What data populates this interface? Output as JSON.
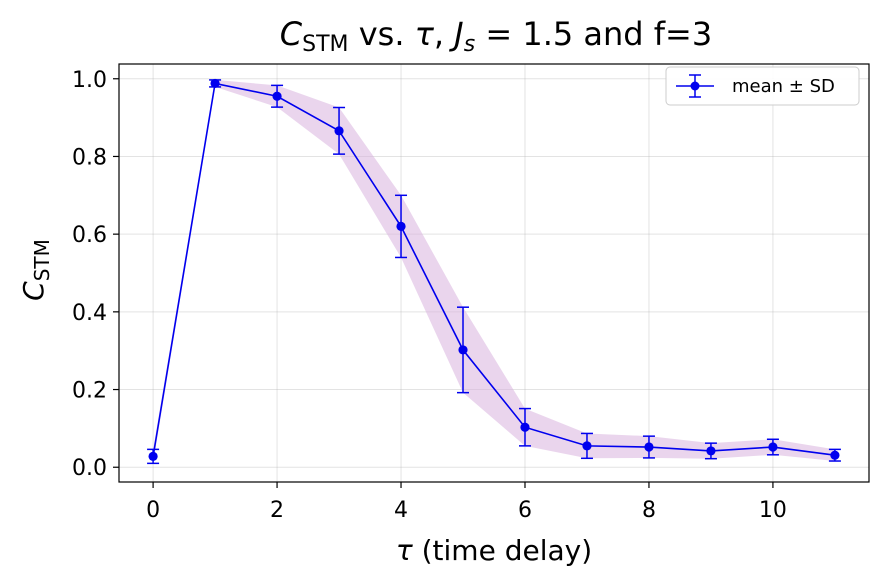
{
  "chart_data": {
    "type": "line",
    "title": {
      "main": "C",
      "sub": "STM",
      "middle": " vs. ",
      "tau": "τ",
      "comma": ", ",
      "j": "J",
      "j_sub": "s",
      "rest": " = 1.5 and f=3"
    },
    "xlabel": {
      "tau": "τ",
      "rest": " (time delay)"
    },
    "ylabel": {
      "main": "C",
      "sub": "STM"
    },
    "xlim": [
      -0.55,
      11.55
    ],
    "ylim": [
      -0.038,
      1.038
    ],
    "xticks": [
      0,
      2,
      4,
      6,
      8,
      10
    ],
    "xtick_labels": [
      "0",
      "2",
      "4",
      "6",
      "8",
      "10"
    ],
    "yticks": [
      0.0,
      0.2,
      0.4,
      0.6,
      0.8,
      1.0
    ],
    "ytick_labels": [
      "0.0",
      "0.2",
      "0.4",
      "0.6",
      "0.8",
      "1.0"
    ],
    "grid": true,
    "legend_position": "top-right",
    "series": [
      {
        "name": "mean ± SD",
        "x": [
          0,
          1,
          2,
          3,
          4,
          5,
          6,
          7,
          8,
          9,
          10,
          11
        ],
        "mean": [
          0.028,
          0.988,
          0.955,
          0.866,
          0.62,
          0.302,
          0.103,
          0.055,
          0.052,
          0.042,
          0.052,
          0.031
        ],
        "sd": [
          0.018,
          0.009,
          0.028,
          0.06,
          0.08,
          0.11,
          0.048,
          0.032,
          0.028,
          0.02,
          0.02,
          0.015
        ],
        "color": "#0000ee",
        "band_color": "#d9b3df"
      }
    ]
  }
}
